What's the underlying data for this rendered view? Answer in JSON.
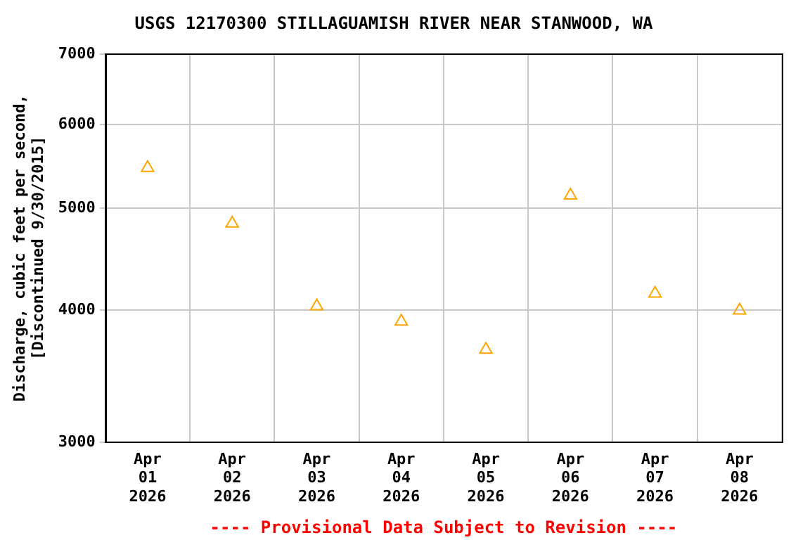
{
  "chart_data": {
    "type": "scatter",
    "title": "USGS 12170300 STILLAGUAMISH RIVER NEAR STANWOOD, WA",
    "ylabel": "Discharge, cubic feet per second,\n[Discontinued 9/30/2015]",
    "categories": [
      "Apr 01 2026",
      "Apr 02 2026",
      "Apr 03 2026",
      "Apr 04 2026",
      "Apr 05 2026",
      "Apr 06 2026",
      "Apr 07 2026",
      "Apr 08 2026"
    ],
    "series": [
      {
        "color": "#ffa500",
        "values": [
          5460,
          4835,
          4036,
          3903,
          3671,
          5140,
          4149,
          4000
        ]
      }
    ],
    "ylim": [
      3000,
      7000
    ],
    "yticks": [
      3000,
      4000,
      5000,
      6000,
      7000
    ],
    "log": true,
    "grid": true,
    "legend": false,
    "marker": "triangle",
    "annotations": [
      "---- Provisional Data Subject to Revision ----"
    ]
  }
}
